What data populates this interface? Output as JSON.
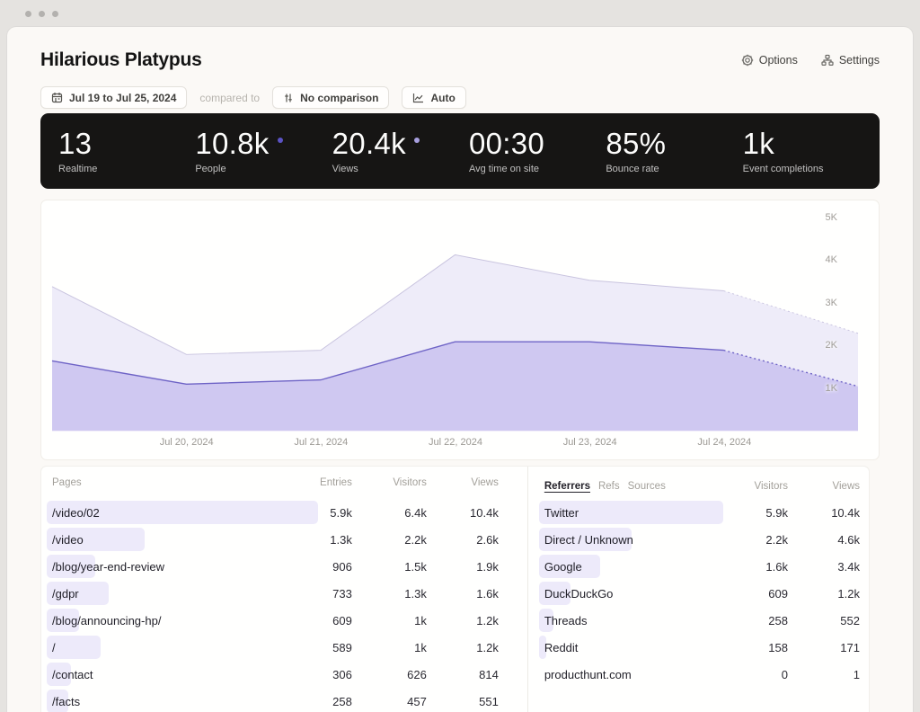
{
  "window": {
    "title": "Hilarious Platypus"
  },
  "header": {
    "options_label": "Options",
    "settings_label": "Settings"
  },
  "toolbar": {
    "date_range": "Jul 19 to Jul 25, 2024",
    "compared_to_label": "compared to",
    "comparison_label": "No comparison",
    "auto_label": "Auto"
  },
  "stats": {
    "items": [
      {
        "value": "13",
        "label": "Realtime"
      },
      {
        "value": "10.8k",
        "label": "People",
        "dot": "#5b53c5"
      },
      {
        "value": "20.4k",
        "label": "Views",
        "dot": "#a79fdf"
      },
      {
        "value": "00:30",
        "label": "Avg time on site"
      },
      {
        "value": "85%",
        "label": "Bounce rate"
      },
      {
        "value": "1k",
        "label": "Event completions"
      }
    ]
  },
  "chart_data": {
    "type": "area",
    "title": "",
    "x": [
      "Jul 19, 2024",
      "Jul 20, 2024",
      "Jul 21, 2024",
      "Jul 22, 2024",
      "Jul 23, 2024",
      "Jul 24, 2024",
      "Jul 25, 2024"
    ],
    "x_tick_labels": [
      "Jul 20, 2024",
      "Jul 21, 2024",
      "Jul 22, 2024",
      "Jul 23, 2024",
      "Jul 24, 2024"
    ],
    "y_ticks": [
      1000,
      2000,
      3000,
      4000,
      5000
    ],
    "y_tick_labels": [
      "1K",
      "2K",
      "3K",
      "4K",
      "5K"
    ],
    "ylim": [
      0,
      5000
    ],
    "grid": false,
    "legend": "none",
    "note": "last segment dashed = incomplete current day",
    "series": [
      {
        "name": "Views",
        "values": [
          3400,
          1800,
          1900,
          4150,
          3550,
          3300,
          2300
        ],
        "fill": "#eeecf9",
        "stroke": "#c9c4df",
        "stroke_width": 1,
        "last_segment_dashed": true
      },
      {
        "name": "Visitors",
        "values": [
          1650,
          1100,
          1200,
          2100,
          2100,
          1900,
          1050
        ],
        "fill": "#cfc8f1",
        "stroke": "#6e63c6",
        "stroke_width": 1.4,
        "last_segment_dashed": true
      }
    ]
  },
  "pages_table": {
    "title": "Pages",
    "columns": [
      "Entries",
      "Visitors",
      "Views"
    ],
    "bar_color": "#edeafa",
    "rows": [
      {
        "label": "/video/02",
        "entries": "5.9k",
        "visitors": "6.4k",
        "views": "10.4k",
        "bar_pct": 100
      },
      {
        "label": "/video",
        "entries": "1.3k",
        "visitors": "2.2k",
        "views": "2.6k",
        "bar_pct": 36
      },
      {
        "label": "/blog/year-end-review",
        "entries": "906",
        "visitors": "1.5k",
        "views": "1.9k",
        "bar_pct": 18
      },
      {
        "label": "/gdpr",
        "entries": "733",
        "visitors": "1.3k",
        "views": "1.6k",
        "bar_pct": 23
      },
      {
        "label": "/blog/announcing-hp/",
        "entries": "609",
        "visitors": "1k",
        "views": "1.2k",
        "bar_pct": 12
      },
      {
        "label": "/",
        "entries": "589",
        "visitors": "1k",
        "views": "1.2k",
        "bar_pct": 20
      },
      {
        "label": "/contact",
        "entries": "306",
        "visitors": "626",
        "views": "814",
        "bar_pct": 9
      },
      {
        "label": "/facts",
        "entries": "258",
        "visitors": "457",
        "views": "551",
        "bar_pct": 8
      }
    ]
  },
  "referrers_table": {
    "tabs": [
      "Referrers",
      "Refs",
      "Sources"
    ],
    "active_tab": "Referrers",
    "columns": [
      "Visitors",
      "Views"
    ],
    "bar_color": "#edeafa",
    "rows": [
      {
        "label": "Twitter",
        "visitors": "5.9k",
        "views": "10.4k",
        "bar_pct": 100
      },
      {
        "label": "Direct / Unknown",
        "visitors": "2.2k",
        "views": "4.6k",
        "bar_pct": 50
      },
      {
        "label": "Google",
        "visitors": "1.6k",
        "views": "3.4k",
        "bar_pct": 33
      },
      {
        "label": "DuckDuckGo",
        "visitors": "609",
        "views": "1.2k",
        "bar_pct": 17
      },
      {
        "label": "Threads",
        "visitors": "258",
        "views": "552",
        "bar_pct": 8
      },
      {
        "label": "Reddit",
        "visitors": "158",
        "views": "171",
        "bar_pct": 4
      },
      {
        "label": "producthunt.com",
        "visitors": "0",
        "views": "1",
        "bar_pct": 0
      }
    ]
  }
}
